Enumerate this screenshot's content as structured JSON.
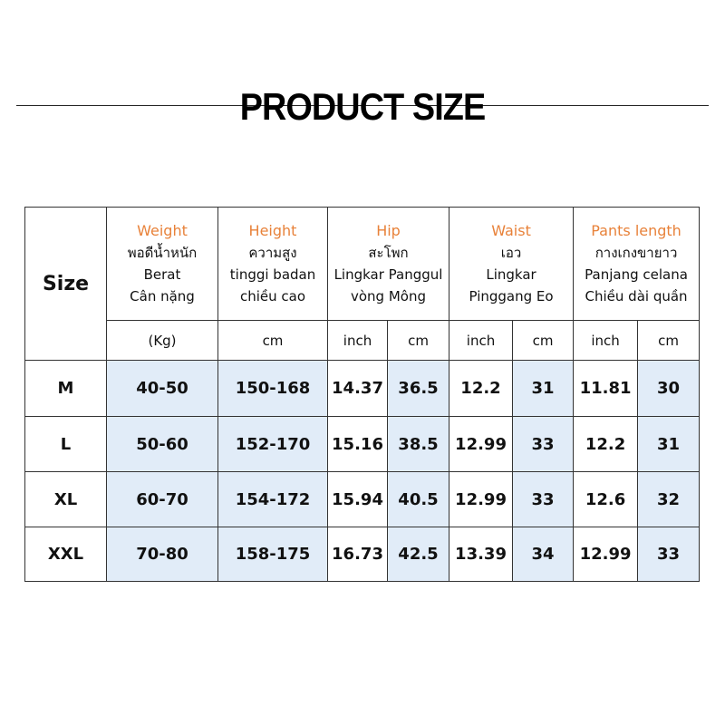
{
  "title": "PRODUCT SIZE",
  "table": {
    "size_header": "Size",
    "groups": [
      {
        "lines": [
          "Weight",
          "พอดีน้ำหนัก",
          "Berat",
          "Cân nặng"
        ],
        "units": [
          "(Kg)"
        ]
      },
      {
        "lines": [
          "Height",
          "ความสูง",
          "tinggi badan",
          "chiều cao"
        ],
        "units": [
          "cm"
        ]
      },
      {
        "lines": [
          "Hip",
          "สะโพก",
          "Lingkar Panggul",
          "vòng Mông"
        ],
        "units": [
          "inch",
          "cm"
        ]
      },
      {
        "lines": [
          "Waist",
          "เอว",
          "Lingkar",
          "Pinggang  Eo"
        ],
        "units": [
          "inch",
          "cm"
        ]
      },
      {
        "lines": [
          "Pants length",
          "กางเกงขายาว",
          "Panjang celana",
          "Chiều dài quần"
        ],
        "units": [
          "inch",
          "cm"
        ]
      }
    ],
    "rows": [
      [
        "M",
        "40-50",
        "150-168",
        "14.37",
        "36.5",
        "12.2",
        "31",
        "11.81",
        "30"
      ],
      [
        "L",
        "50-60",
        "152-170",
        "15.16",
        "38.5",
        "12.99",
        "33",
        "12.2",
        "31"
      ],
      [
        "XL",
        "60-70",
        "154-172",
        "15.94",
        "40.5",
        "12.99",
        "33",
        "12.6",
        "32"
      ],
      [
        "XXL",
        "70-80",
        "158-175",
        "16.73",
        "42.5",
        "13.39",
        "34",
        "12.99",
        "33"
      ]
    ]
  }
}
